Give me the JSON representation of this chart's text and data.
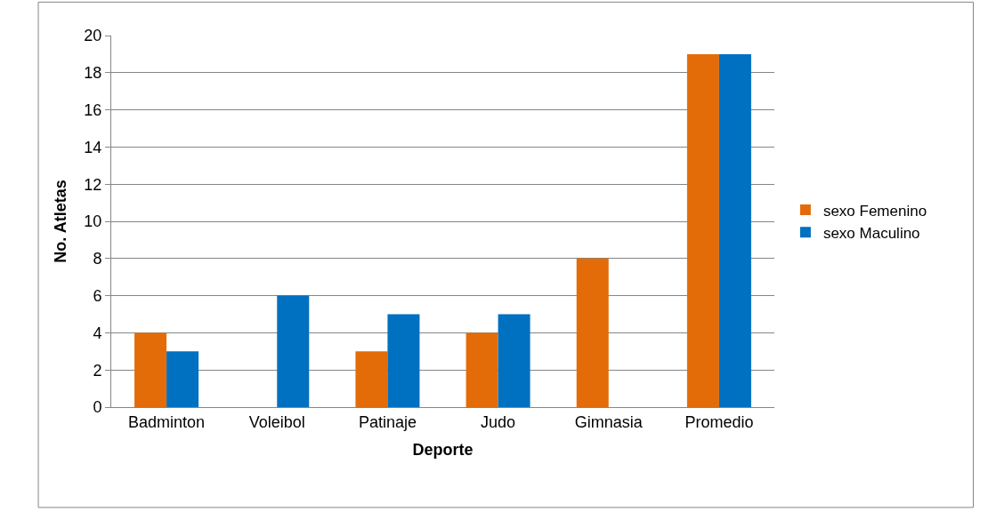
{
  "chart_data": {
    "type": "bar",
    "xlabel": "Deporte",
    "ylabel": "No. Atletas",
    "categories": [
      "Badminton",
      "Voleibol",
      "Patinaje",
      "Judo",
      "Gimnasia",
      "Promedio"
    ],
    "series": [
      {
        "name": "sexo Femenino",
        "color": "#e36c09",
        "values": [
          4,
          null,
          3,
          4,
          8,
          19
        ]
      },
      {
        "name": "sexo Maculino",
        "color": "#0070c0",
        "values": [
          3,
          6,
          5,
          5,
          null,
          19
        ]
      }
    ],
    "ylim": [
      0,
      20
    ],
    "yticks": [
      0,
      2,
      4,
      6,
      8,
      10,
      12,
      14,
      16,
      18,
      20
    ],
    "grid": "y",
    "legend": "right"
  }
}
